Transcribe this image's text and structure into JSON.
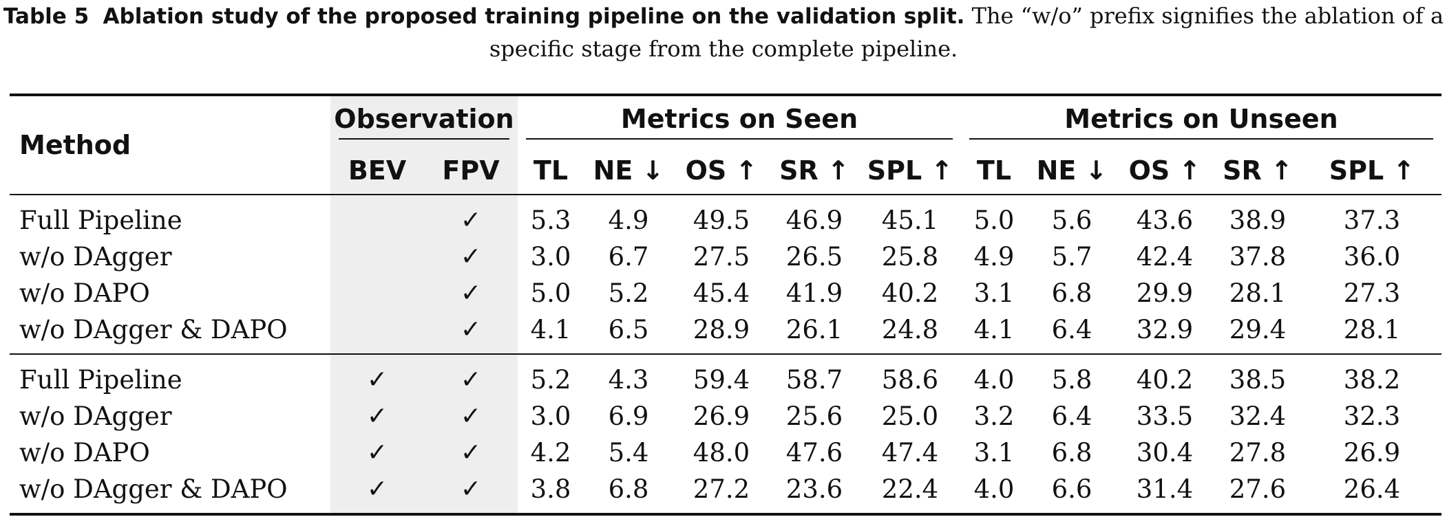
{
  "caption": {
    "label": "Table 5",
    "bold_text": "Ablation study of the proposed training pipeline on the validation split.",
    "text": "The “w/o” prefix signifies the ablation of a specific stage from the complete pipeline."
  },
  "header": {
    "method": "Method",
    "observation": "Observation",
    "seen": "Metrics on Seen",
    "unseen": "Metrics on Unseen",
    "bev": "BEV",
    "fpv": "FPV",
    "metrics": [
      "TL",
      "NE ↓",
      "OS ↑",
      "SR ↑",
      "SPL ↑"
    ]
  },
  "groups": [
    {
      "rows": [
        {
          "method": "Full Pipeline",
          "bev": "",
          "fpv": "✓",
          "seen": [
            "5.3",
            "4.9",
            "49.5",
            "46.9",
            "45.1"
          ],
          "unseen": [
            "5.0",
            "5.6",
            "43.6",
            "38.9",
            "37.3"
          ]
        },
        {
          "method": "w/o DAgger",
          "bev": "",
          "fpv": "✓",
          "seen": [
            "3.0",
            "6.7",
            "27.5",
            "26.5",
            "25.8"
          ],
          "unseen": [
            "4.9",
            "5.7",
            "42.4",
            "37.8",
            "36.0"
          ]
        },
        {
          "method": "w/o DAPO",
          "bev": "",
          "fpv": "✓",
          "seen": [
            "5.0",
            "5.2",
            "45.4",
            "41.9",
            "40.2"
          ],
          "unseen": [
            "3.1",
            "6.8",
            "29.9",
            "28.1",
            "27.3"
          ]
        },
        {
          "method": "w/o DAgger & DAPO",
          "bev": "",
          "fpv": "✓",
          "seen": [
            "4.1",
            "6.5",
            "28.9",
            "26.1",
            "24.8"
          ],
          "unseen": [
            "4.1",
            "6.4",
            "32.9",
            "29.4",
            "28.1"
          ]
        }
      ]
    },
    {
      "rows": [
        {
          "method": "Full Pipeline",
          "bev": "✓",
          "fpv": "✓",
          "seen": [
            "5.2",
            "4.3",
            "59.4",
            "58.7",
            "58.6"
          ],
          "unseen": [
            "4.0",
            "5.8",
            "40.2",
            "38.5",
            "38.2"
          ]
        },
        {
          "method": "w/o DAgger",
          "bev": "✓",
          "fpv": "✓",
          "seen": [
            "3.0",
            "6.9",
            "26.9",
            "25.6",
            "25.0"
          ],
          "unseen": [
            "3.2",
            "6.4",
            "33.5",
            "32.4",
            "32.3"
          ]
        },
        {
          "method": "w/o DAPO",
          "bev": "✓",
          "fpv": "✓",
          "seen": [
            "4.2",
            "5.4",
            "48.0",
            "47.6",
            "47.4"
          ],
          "unseen": [
            "3.1",
            "6.8",
            "30.4",
            "27.8",
            "26.9"
          ]
        },
        {
          "method": "w/o DAgger & DAPO",
          "bev": "✓",
          "fpv": "✓",
          "seen": [
            "3.8",
            "6.8",
            "27.2",
            "23.6",
            "22.4"
          ],
          "unseen": [
            "4.0",
            "6.6",
            "31.4",
            "27.6",
            "26.4"
          ]
        }
      ]
    }
  ]
}
